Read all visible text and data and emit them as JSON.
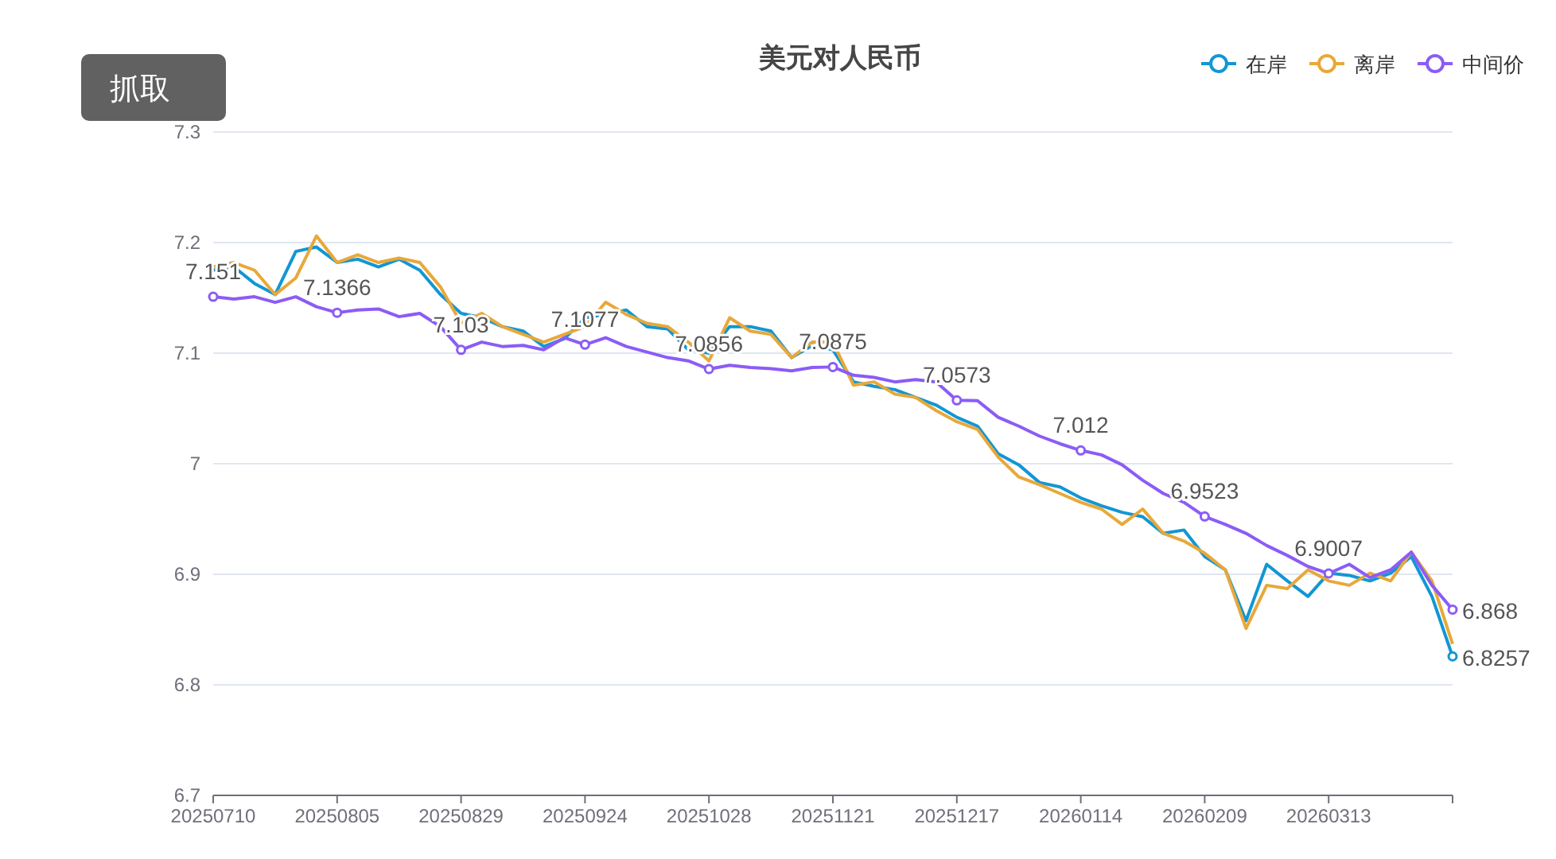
{
  "chart_data": {
    "type": "line",
    "title": "美元对人民币",
    "categories": [
      "20250710",
      null,
      null,
      null,
      null,
      null,
      "20250805",
      null,
      null,
      null,
      null,
      null,
      "20250829",
      null,
      null,
      null,
      null,
      null,
      "20250924",
      null,
      null,
      null,
      null,
      null,
      "20251028",
      null,
      null,
      null,
      null,
      null,
      "20251121",
      null,
      null,
      null,
      null,
      null,
      "20251217",
      null,
      null,
      null,
      null,
      null,
      "20260114",
      null,
      null,
      null,
      null,
      null,
      "20260209",
      null,
      null,
      null,
      null,
      null,
      "20260313",
      null,
      null,
      null,
      null,
      null,
      null
    ],
    "series": [
      {
        "name": "在岸",
        "color": "#1296d4",
        "values": [
          7.175,
          7.178,
          7.163,
          7.153,
          7.192,
          7.196,
          7.182,
          7.185,
          7.178,
          7.185,
          7.175,
          7.153,
          7.136,
          7.132,
          7.124,
          7.12,
          7.106,
          7.113,
          7.132,
          7.135,
          7.139,
          7.124,
          7.122,
          7.103,
          7.1,
          7.124,
          7.124,
          7.12,
          7.096,
          7.107,
          7.103,
          7.074,
          7.07,
          7.067,
          7.06,
          7.053,
          7.042,
          7.034,
          7.009,
          6.999,
          6.983,
          6.979,
          6.969,
          6.962,
          6.956,
          6.952,
          6.937,
          6.94,
          6.916,
          6.904,
          6.858,
          6.909,
          6.894,
          6.88,
          6.901,
          6.899,
          6.894,
          6.901,
          6.916,
          6.88,
          6.8257
        ],
        "value_labels": [
          null,
          null,
          null,
          null,
          null,
          null,
          null,
          null,
          null,
          null,
          null,
          null,
          null,
          null,
          null,
          null,
          null,
          null,
          null,
          null,
          null,
          null,
          null,
          null,
          null,
          null,
          null,
          null,
          null,
          null,
          null,
          null,
          null,
          null,
          null,
          null,
          null,
          null,
          null,
          null,
          null,
          null,
          null,
          null,
          null,
          null,
          null,
          null,
          null,
          null,
          null,
          null,
          null,
          null,
          null,
          null,
          null,
          null,
          null,
          null,
          "6.8257"
        ]
      },
      {
        "name": "离岸",
        "color": "#e8a83a",
        "values": [
          7.178,
          7.182,
          7.175,
          7.153,
          7.168,
          7.206,
          7.182,
          7.189,
          7.182,
          7.186,
          7.182,
          7.16,
          7.127,
          7.136,
          7.124,
          7.117,
          7.11,
          7.117,
          7.124,
          7.146,
          7.135,
          7.127,
          7.124,
          7.11,
          7.093,
          7.132,
          7.12,
          7.117,
          7.096,
          7.11,
          7.11,
          7.071,
          7.074,
          7.063,
          7.06,
          7.048,
          7.038,
          7.031,
          7.006,
          6.988,
          6.981,
          6.973,
          6.965,
          6.959,
          6.945,
          6.959,
          6.937,
          6.93,
          6.919,
          6.904,
          6.851,
          6.89,
          6.887,
          6.904,
          6.894,
          6.89,
          6.901,
          6.894,
          6.92,
          6.894,
          6.837
        ]
      },
      {
        "name": "中间价",
        "color": "#8b5cf6",
        "values": [
          7.151,
          7.149,
          7.151,
          7.146,
          7.151,
          7.142,
          7.1366,
          7.139,
          7.14,
          7.133,
          7.136,
          7.124,
          7.103,
          7.11,
          7.106,
          7.107,
          7.103,
          7.114,
          7.1077,
          7.114,
          7.106,
          7.101,
          7.096,
          7.093,
          7.0856,
          7.089,
          7.087,
          7.086,
          7.084,
          7.087,
          7.0875,
          7.08,
          7.078,
          7.074,
          7.076,
          7.074,
          7.0573,
          7.057,
          7.042,
          7.034,
          7.025,
          7.018,
          7.012,
          7.008,
          6.999,
          6.985,
          6.973,
          6.965,
          6.9523,
          6.945,
          6.937,
          6.926,
          6.917,
          6.907,
          6.9007,
          6.909,
          6.897,
          6.904,
          6.92,
          6.89,
          6.868
        ],
        "value_labels": [
          "7.151",
          null,
          null,
          null,
          null,
          null,
          "7.1366",
          null,
          null,
          null,
          null,
          null,
          "7.103",
          null,
          null,
          null,
          null,
          null,
          "7.1077",
          null,
          null,
          null,
          null,
          null,
          "7.0856",
          null,
          null,
          null,
          null,
          null,
          "7.0875",
          null,
          null,
          null,
          null,
          null,
          "7.0573",
          null,
          null,
          null,
          null,
          null,
          "7.012",
          null,
          null,
          null,
          null,
          null,
          "6.9523",
          null,
          null,
          null,
          null,
          null,
          "6.9007",
          null,
          null,
          null,
          null,
          null,
          "6.868"
        ]
      }
    ],
    "ylim": [
      6.7,
      7.3
    ],
    "yticks": [
      6.7,
      6.8,
      6.9,
      7,
      7.1,
      7.2,
      7.3
    ],
    "grid": "y",
    "legend": "top right",
    "annotations": [
      "抓取"
    ]
  }
}
